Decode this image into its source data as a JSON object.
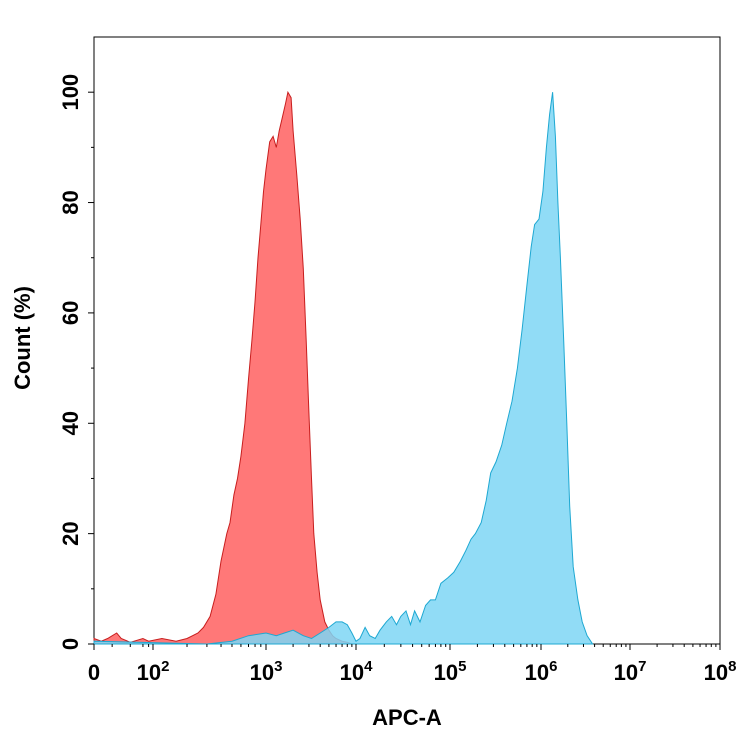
{
  "chart_data": {
    "type": "area",
    "title": "",
    "xlabel": "APC-A",
    "ylabel": "Count (%)",
    "x_scale": "biexponential",
    "xlim": [
      0,
      100000000
    ],
    "ylim": [
      0,
      110
    ],
    "x_ticks": [
      {
        "value": 0,
        "base": "0",
        "exp": ""
      },
      {
        "value": 100,
        "base": "10",
        "exp": "2"
      },
      {
        "value": 1000,
        "base": "10",
        "exp": "3"
      },
      {
        "value": 10000,
        "base": "10",
        "exp": "4"
      },
      {
        "value": 100000,
        "base": "10",
        "exp": "5"
      },
      {
        "value": 1000000,
        "base": "10",
        "exp": "6"
      },
      {
        "value": 10000000,
        "base": "10",
        "exp": "7"
      },
      {
        "value": 100000000,
        "base": "10",
        "exp": "8"
      }
    ],
    "y_ticks": [
      0,
      20,
      40,
      60,
      80,
      100
    ],
    "grid": false,
    "legend": "none",
    "series": [
      {
        "color": "#ff7878",
        "stroke": "#c81e1e",
        "points": [
          [
            0,
            1
          ],
          [
            8,
            0.5
          ],
          [
            15,
            1
          ],
          [
            25,
            2
          ],
          [
            30,
            1
          ],
          [
            40,
            0.3
          ],
          [
            60,
            1
          ],
          [
            80,
            0.5
          ],
          [
            120,
            1
          ],
          [
            160,
            0.5
          ],
          [
            200,
            1
          ],
          [
            250,
            2
          ],
          [
            280,
            3
          ],
          [
            320,
            5
          ],
          [
            360,
            9
          ],
          [
            400,
            15
          ],
          [
            450,
            20
          ],
          [
            480,
            22
          ],
          [
            520,
            27
          ],
          [
            560,
            30
          ],
          [
            600,
            34
          ],
          [
            650,
            40
          ],
          [
            700,
            48
          ],
          [
            750,
            55
          ],
          [
            800,
            62
          ],
          [
            850,
            70
          ],
          [
            900,
            76
          ],
          [
            950,
            82
          ],
          [
            1000,
            86
          ],
          [
            1100,
            91
          ],
          [
            1200,
            92
          ],
          [
            1300,
            90
          ],
          [
            1400,
            93
          ],
          [
            1500,
            95
          ],
          [
            1650,
            98
          ],
          [
            1750,
            100
          ],
          [
            1900,
            99
          ],
          [
            2000,
            93
          ],
          [
            2200,
            85
          ],
          [
            2400,
            77
          ],
          [
            2600,
            68
          ],
          [
            2800,
            55
          ],
          [
            3000,
            42
          ],
          [
            3200,
            30
          ],
          [
            3400,
            20
          ],
          [
            3700,
            13
          ],
          [
            4000,
            8
          ],
          [
            4500,
            4
          ],
          [
            5000,
            2.5
          ],
          [
            5500,
            1.5
          ],
          [
            6000,
            1
          ],
          [
            7000,
            0.5
          ],
          [
            8000,
            0.3
          ],
          [
            9000,
            0
          ]
        ]
      },
      {
        "color": "#7ed6f5",
        "stroke": "#1ea8d2",
        "points": [
          [
            0,
            0.5
          ],
          [
            300,
            0
          ],
          [
            500,
            0.5
          ],
          [
            700,
            1.5
          ],
          [
            1000,
            2
          ],
          [
            1300,
            1.5
          ],
          [
            1600,
            2
          ],
          [
            2000,
            2.5
          ],
          [
            2600,
            1.5
          ],
          [
            3200,
            1
          ],
          [
            4000,
            2
          ],
          [
            5000,
            3
          ],
          [
            6000,
            4
          ],
          [
            7000,
            4
          ],
          [
            8000,
            3.5
          ],
          [
            9000,
            2
          ],
          [
            10000,
            0.5
          ],
          [
            11000,
            1
          ],
          [
            12500,
            3
          ],
          [
            14000,
            1.5
          ],
          [
            16000,
            1
          ],
          [
            18000,
            2.5
          ],
          [
            21000,
            4
          ],
          [
            24000,
            5
          ],
          [
            27000,
            3.5
          ],
          [
            30000,
            5
          ],
          [
            34000,
            6
          ],
          [
            38000,
            3.5
          ],
          [
            42000,
            6
          ],
          [
            48000,
            4
          ],
          [
            55000,
            7
          ],
          [
            62000,
            8
          ],
          [
            70000,
            8
          ],
          [
            80000,
            11
          ],
          [
            95000,
            12
          ],
          [
            110000,
            13
          ],
          [
            130000,
            15
          ],
          [
            150000,
            17
          ],
          [
            170000,
            19
          ],
          [
            190000,
            20
          ],
          [
            220000,
            22
          ],
          [
            250000,
            26
          ],
          [
            280000,
            31
          ],
          [
            320000,
            33
          ],
          [
            370000,
            36
          ],
          [
            420000,
            40
          ],
          [
            480000,
            44
          ],
          [
            550000,
            50
          ],
          [
            620000,
            57
          ],
          [
            700000,
            65
          ],
          [
            780000,
            72
          ],
          [
            850000,
            76
          ],
          [
            950000,
            77
          ],
          [
            1050000,
            82
          ],
          [
            1150000,
            90
          ],
          [
            1250000,
            96
          ],
          [
            1350000,
            100
          ],
          [
            1450000,
            92
          ],
          [
            1550000,
            80
          ],
          [
            1650000,
            70
          ],
          [
            1800000,
            55
          ],
          [
            1950000,
            40
          ],
          [
            2100000,
            25
          ],
          [
            2300000,
            14
          ],
          [
            2600000,
            8
          ],
          [
            2900000,
            4
          ],
          [
            3300000,
            1.5
          ],
          [
            3800000,
            0
          ]
        ]
      }
    ]
  }
}
